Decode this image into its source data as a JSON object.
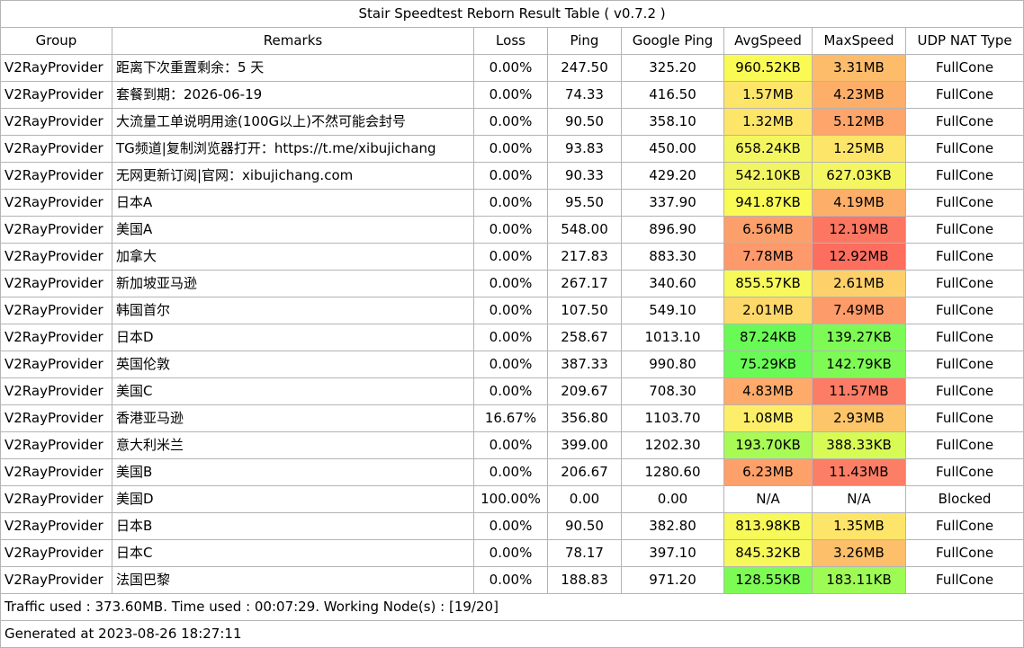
{
  "title": "Stair Speedtest Reborn Result Table ( v0.7.2 )",
  "columns": [
    "Group",
    "Remarks",
    "Loss",
    "Ping",
    "Google Ping",
    "AvgSpeed",
    "MaxSpeed",
    "UDP NAT Type"
  ],
  "rows": [
    {
      "group": "V2RayProvider",
      "remarks": "距离下次重置剩余：5 天",
      "loss": "0.00%",
      "ping": "247.50",
      "google_ping": "325.20",
      "avg_speed": "960.52KB",
      "avg_color": "#fafa55",
      "max_speed": "3.31MB",
      "max_color": "#fdbc6a",
      "udp_nat": "FullCone"
    },
    {
      "group": "V2RayProvider",
      "remarks": "套餐到期：2026-06-19",
      "loss": "0.00%",
      "ping": "74.33",
      "google_ping": "416.50",
      "avg_speed": "1.57MB",
      "avg_color": "#fde56a",
      "max_speed": "4.23MB",
      "max_color": "#fdaf6a",
      "udp_nat": "FullCone"
    },
    {
      "group": "V2RayProvider",
      "remarks": "大流量工单说明用途(100G以上)不然可能会封号",
      "loss": "0.00%",
      "ping": "90.50",
      "google_ping": "358.10",
      "avg_speed": "1.32MB",
      "avg_color": "#fde56a",
      "max_speed": "5.12MB",
      "max_color": "#fda56a",
      "udp_nat": "FullCone"
    },
    {
      "group": "V2RayProvider",
      "remarks": "TG频道|复制浏览器打开：https://t.me/xibujichang",
      "loss": "0.00%",
      "ping": "93.83",
      "google_ping": "450.00",
      "avg_speed": "658.24KB",
      "avg_color": "#f4f661",
      "max_speed": "1.25MB",
      "max_color": "#fde56a",
      "udp_nat": "FullCone"
    },
    {
      "group": "V2RayProvider",
      "remarks": "无网更新订阅|官网：xibujichang.com",
      "loss": "0.00%",
      "ping": "90.33",
      "google_ping": "429.20",
      "avg_speed": "542.10KB",
      "avg_color": "#f2f562",
      "max_speed": "627.03KB",
      "max_color": "#f4f661",
      "udp_nat": "FullCone"
    },
    {
      "group": "V2RayProvider",
      "remarks": "日本A",
      "loss": "0.00%",
      "ping": "95.50",
      "google_ping": "337.90",
      "avg_speed": "941.87KB",
      "avg_color": "#fafa55",
      "max_speed": "4.19MB",
      "max_color": "#fdaf6a",
      "udp_nat": "FullCone"
    },
    {
      "group": "V2RayProvider",
      "remarks": "美国A",
      "loss": "0.00%",
      "ping": "548.00",
      "google_ping": "896.90",
      "avg_speed": "6.56MB",
      "avg_color": "#fd9f6a",
      "max_speed": "12.19MB",
      "max_color": "#fd7662",
      "udp_nat": "FullCone"
    },
    {
      "group": "V2RayProvider",
      "remarks": "加拿大",
      "loss": "0.00%",
      "ping": "217.83",
      "google_ping": "883.30",
      "avg_speed": "7.78MB",
      "avg_color": "#fd996a",
      "max_speed": "12.92MB",
      "max_color": "#fd6e5f",
      "udp_nat": "FullCone"
    },
    {
      "group": "V2RayProvider",
      "remarks": "新加坡亚马逊",
      "loss": "0.00%",
      "ping": "267.17",
      "google_ping": "340.60",
      "avg_speed": "855.57KB",
      "avg_color": "#f7f85a",
      "max_speed": "2.61MB",
      "max_color": "#fdd06a",
      "udp_nat": "FullCone"
    },
    {
      "group": "V2RayProvider",
      "remarks": "韩国首尔",
      "loss": "0.00%",
      "ping": "107.50",
      "google_ping": "549.10",
      "avg_speed": "2.01MB",
      "avg_color": "#fdd86a",
      "max_speed": "7.49MB",
      "max_color": "#fd9b6a",
      "udp_nat": "FullCone"
    },
    {
      "group": "V2RayProvider",
      "remarks": "日本D",
      "loss": "0.00%",
      "ping": "258.67",
      "google_ping": "1013.10",
      "avg_speed": "87.24KB",
      "avg_color": "#6afa55",
      "max_speed": "139.27KB",
      "max_color": "#7efa55",
      "udp_nat": "FullCone"
    },
    {
      "group": "V2RayProvider",
      "remarks": "英国伦敦",
      "loss": "0.00%",
      "ping": "387.33",
      "google_ping": "990.80",
      "avg_speed": "75.29KB",
      "avg_color": "#6afa55",
      "max_speed": "142.79KB",
      "max_color": "#7efa55",
      "udp_nat": "FullCone"
    },
    {
      "group": "V2RayProvider",
      "remarks": "美国C",
      "loss": "0.00%",
      "ping": "209.67",
      "google_ping": "708.30",
      "avg_speed": "4.83MB",
      "avg_color": "#fdaa6a",
      "max_speed": "11.57MB",
      "max_color": "#fd7c65",
      "udp_nat": "FullCone"
    },
    {
      "group": "V2RayProvider",
      "remarks": "香港亚马逊",
      "loss": "16.67%",
      "ping": "356.80",
      "google_ping": "1103.70",
      "avg_speed": "1.08MB",
      "avg_color": "#fdee6a",
      "max_speed": "2.93MB",
      "max_color": "#fdc56a",
      "udp_nat": "FullCone"
    },
    {
      "group": "V2RayProvider",
      "remarks": "意大利米兰",
      "loss": "0.00%",
      "ping": "399.00",
      "google_ping": "1202.30",
      "avg_speed": "193.70KB",
      "avg_color": "#a8fa55",
      "max_speed": "388.33KB",
      "max_color": "#d8fa55",
      "udp_nat": "FullCone"
    },
    {
      "group": "V2RayProvider",
      "remarks": "美国B",
      "loss": "0.00%",
      "ping": "206.67",
      "google_ping": "1280.60",
      "avg_speed": "6.23MB",
      "avg_color": "#fda06a",
      "max_speed": "11.43MB",
      "max_color": "#fd7e66",
      "udp_nat": "FullCone"
    },
    {
      "group": "V2RayProvider",
      "remarks": "美国D",
      "loss": "100.00%",
      "ping": "0.00",
      "google_ping": "0.00",
      "avg_speed": "N/A",
      "avg_color": "#ffffff",
      "max_speed": "N/A",
      "max_color": "#ffffff",
      "udp_nat": "Blocked"
    },
    {
      "group": "V2RayProvider",
      "remarks": "日本B",
      "loss": "0.00%",
      "ping": "90.50",
      "google_ping": "382.80",
      "avg_speed": "813.98KB",
      "avg_color": "#f7f85a",
      "max_speed": "1.35MB",
      "max_color": "#fde56a",
      "udp_nat": "FullCone"
    },
    {
      "group": "V2RayProvider",
      "remarks": "日本C",
      "loss": "0.00%",
      "ping": "78.17",
      "google_ping": "397.10",
      "avg_speed": "845.32KB",
      "avg_color": "#f7f85a",
      "max_speed": "3.26MB",
      "max_color": "#fdbf6a",
      "udp_nat": "FullCone"
    },
    {
      "group": "V2RayProvider",
      "remarks": "法国巴黎",
      "loss": "0.00%",
      "ping": "188.83",
      "google_ping": "971.20",
      "avg_speed": "128.55KB",
      "avg_color": "#7efa55",
      "max_speed": "183.11KB",
      "max_color": "#9efa55",
      "udp_nat": "FullCone"
    }
  ],
  "footer": {
    "traffic": "Traffic used : 373.60MB. Time used : 00:07:29. Working Node(s) : [19/20]",
    "generated": "Generated at 2023-08-26 18:27:11"
  }
}
